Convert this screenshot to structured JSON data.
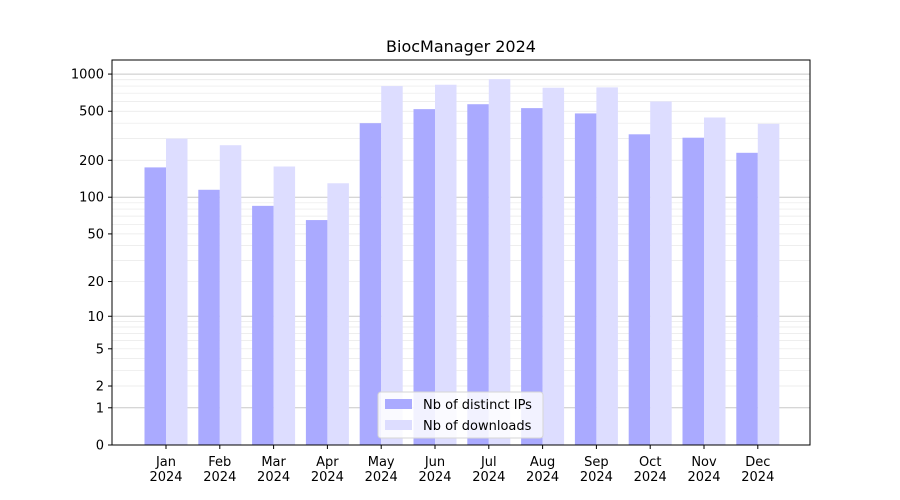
{
  "chart_data": {
    "type": "bar",
    "title": "BiocManager 2024",
    "xlabel": "",
    "ylabel": "",
    "y_scale": "log1p",
    "ylim": [
      0,
      1300
    ],
    "yticks": [
      0,
      1,
      2,
      5,
      10,
      20,
      50,
      100,
      200,
      500,
      1000
    ],
    "grid": true,
    "legend_position": "bottom-center",
    "categories": [
      [
        "Jan",
        "2024"
      ],
      [
        "Feb",
        "2024"
      ],
      [
        "Mar",
        "2024"
      ],
      [
        "Apr",
        "2024"
      ],
      [
        "May",
        "2024"
      ],
      [
        "Jun",
        "2024"
      ],
      [
        "Jul",
        "2024"
      ],
      [
        "Aug",
        "2024"
      ],
      [
        "Sep",
        "2024"
      ],
      [
        "Oct",
        "2024"
      ],
      [
        "Nov",
        "2024"
      ],
      [
        "Dec",
        "2024"
      ]
    ],
    "series": [
      {
        "name": "Nb of distinct IPs",
        "color": "#aaaaff",
        "values": [
          175,
          115,
          85,
          65,
          400,
          520,
          570,
          530,
          480,
          325,
          305,
          230
        ]
      },
      {
        "name": "Nb of downloads",
        "color": "#ddddff",
        "values": [
          300,
          265,
          178,
          130,
          800,
          820,
          910,
          775,
          780,
          600,
          445,
          395
        ]
      }
    ]
  }
}
